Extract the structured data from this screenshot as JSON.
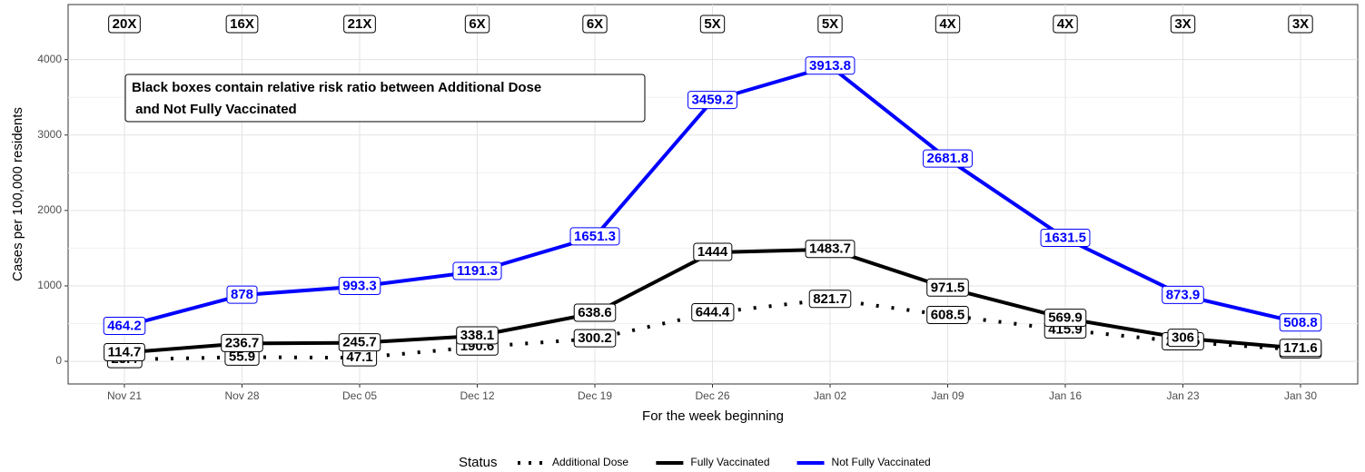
{
  "chart_data": {
    "type": "line",
    "x_label": "For the week beginning",
    "y_label": "Cases per 100,000 residents",
    "categories": [
      "Nov 21",
      "Nov 28",
      "Dec 05",
      "Dec 12",
      "Dec 19",
      "Dec 26",
      "Jan 02",
      "Jan 09",
      "Jan 16",
      "Jan 23",
      "Jan 30"
    ],
    "series": [
      {
        "name": "Additional Dose",
        "color": "#000000",
        "linestyle": "dotted",
        "values": [
          23.4,
          55.9,
          47.1,
          190.6,
          300.2,
          644.4,
          821.7,
          608.5,
          415.9,
          258.5,
          151.9
        ]
      },
      {
        "name": "Fully Vaccinated",
        "color": "#000000",
        "linestyle": "solid",
        "values": [
          114.7,
          236.7,
          245.7,
          338.1,
          638.6,
          1444,
          1483.7,
          971.5,
          569.9,
          306,
          171.6
        ]
      },
      {
        "name": "Not Fully Vaccinated",
        "color": "#0000ff",
        "linestyle": "solid",
        "values": [
          464.2,
          878,
          993.3,
          1191.3,
          1651.3,
          3459.2,
          3913.8,
          2681.8,
          1631.5,
          873.9,
          508.8
        ]
      }
    ],
    "ratio_labels": [
      "20X",
      "16X",
      "21X",
      "6X",
      "6X",
      "5X",
      "5X",
      "4X",
      "4X",
      "3X",
      "3X"
    ],
    "annotation": [
      "Black boxes contain relative risk ratio between Additional Dose",
      " and Not Fully Vaccinated"
    ],
    "legend_title": "Status",
    "legend_position": "bottom",
    "ylim": [
      -300,
      4730
    ],
    "yticks": [
      0,
      1000,
      2000,
      3000,
      4000
    ],
    "grid": true
  }
}
